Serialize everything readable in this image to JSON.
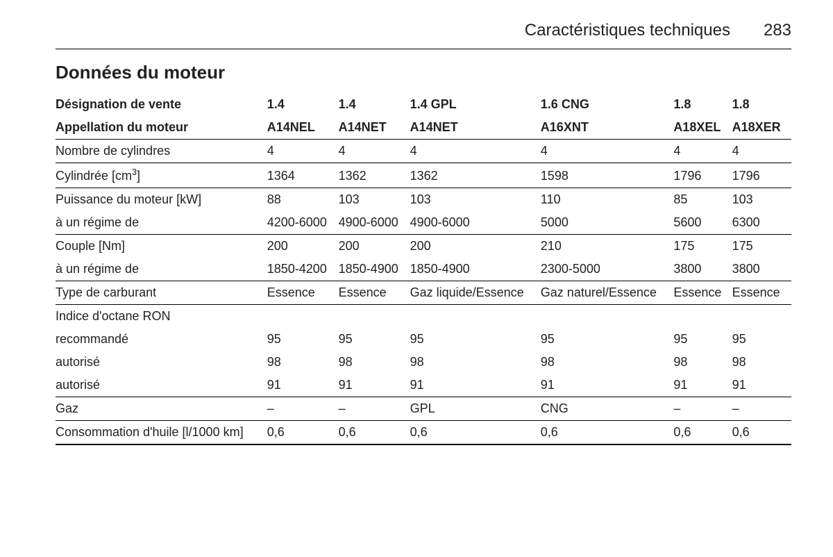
{
  "header": {
    "chapter": "Caractéristiques techniques",
    "page": "283"
  },
  "section_title": "Données du moteur",
  "table": {
    "head_rows": [
      {
        "label": "Désignation de vente",
        "cells": [
          "1.4",
          "1.4",
          "1.4 GPL",
          "1.6 CNG",
          "1.8",
          "1.8"
        ]
      },
      {
        "label": "Appellation du moteur",
        "cells": [
          "A14NEL",
          "A14NET",
          "A14NET",
          "A16XNT",
          "A18XEL",
          "A18XER"
        ]
      }
    ],
    "body_rows": [
      {
        "label": "Nombre de cylindres",
        "cells": [
          "4",
          "4",
          "4",
          "4",
          "4",
          "4"
        ],
        "ruled": true
      },
      {
        "label_html": "Cylindrée [cm<sup>3</sup>]",
        "cells": [
          "1364",
          "1362",
          "1362",
          "1598",
          "1796",
          "1796"
        ],
        "ruled": true
      },
      {
        "label": "Puissance du moteur [kW]",
        "cells": [
          "88",
          "103",
          "103",
          "110",
          "85",
          "103"
        ],
        "ruled": false
      },
      {
        "label": "à un régime de",
        "cells": [
          "4200-6000",
          "4900-6000",
          "4900-6000",
          "5000",
          "5600",
          "6300"
        ],
        "ruled": true
      },
      {
        "label": "Couple [Nm]",
        "cells": [
          "200",
          "200",
          "200",
          "210",
          "175",
          "175"
        ],
        "ruled": false
      },
      {
        "label": "à un régime de",
        "cells": [
          "1850-4200",
          "1850-4900",
          "1850-4900",
          "2300-5000",
          "3800",
          "3800"
        ],
        "ruled": true
      },
      {
        "label": "Type de carburant",
        "cells": [
          "Essence",
          "Essence",
          "Gaz liquide/Essence",
          "Gaz naturel/Essence",
          "Essence",
          "Essence"
        ],
        "ruled": true
      },
      {
        "label": "Indice d'octane RON",
        "cells": [
          "",
          "",
          "",
          "",
          "",
          ""
        ],
        "ruled": false
      },
      {
        "label": "recommandé",
        "cells": [
          "95",
          "95",
          "95",
          "95",
          "95",
          "95"
        ],
        "ruled": false
      },
      {
        "label": "autorisé",
        "cells": [
          "98",
          "98",
          "98",
          "98",
          "98",
          "98"
        ],
        "ruled": false
      },
      {
        "label": "autorisé",
        "cells": [
          "91",
          "91",
          "91",
          "91",
          "91",
          "91"
        ],
        "ruled": true
      },
      {
        "label": "Gaz",
        "cells": [
          "–",
          "–",
          "GPL",
          "CNG",
          "–",
          "–"
        ],
        "ruled": true
      },
      {
        "label": "Consommation d'huile [l/1000 km]",
        "cells": [
          "0,6",
          "0,6",
          "0,6",
          "0,6",
          "0,6",
          "0,6"
        ],
        "ruled": false,
        "thick": true
      }
    ]
  }
}
